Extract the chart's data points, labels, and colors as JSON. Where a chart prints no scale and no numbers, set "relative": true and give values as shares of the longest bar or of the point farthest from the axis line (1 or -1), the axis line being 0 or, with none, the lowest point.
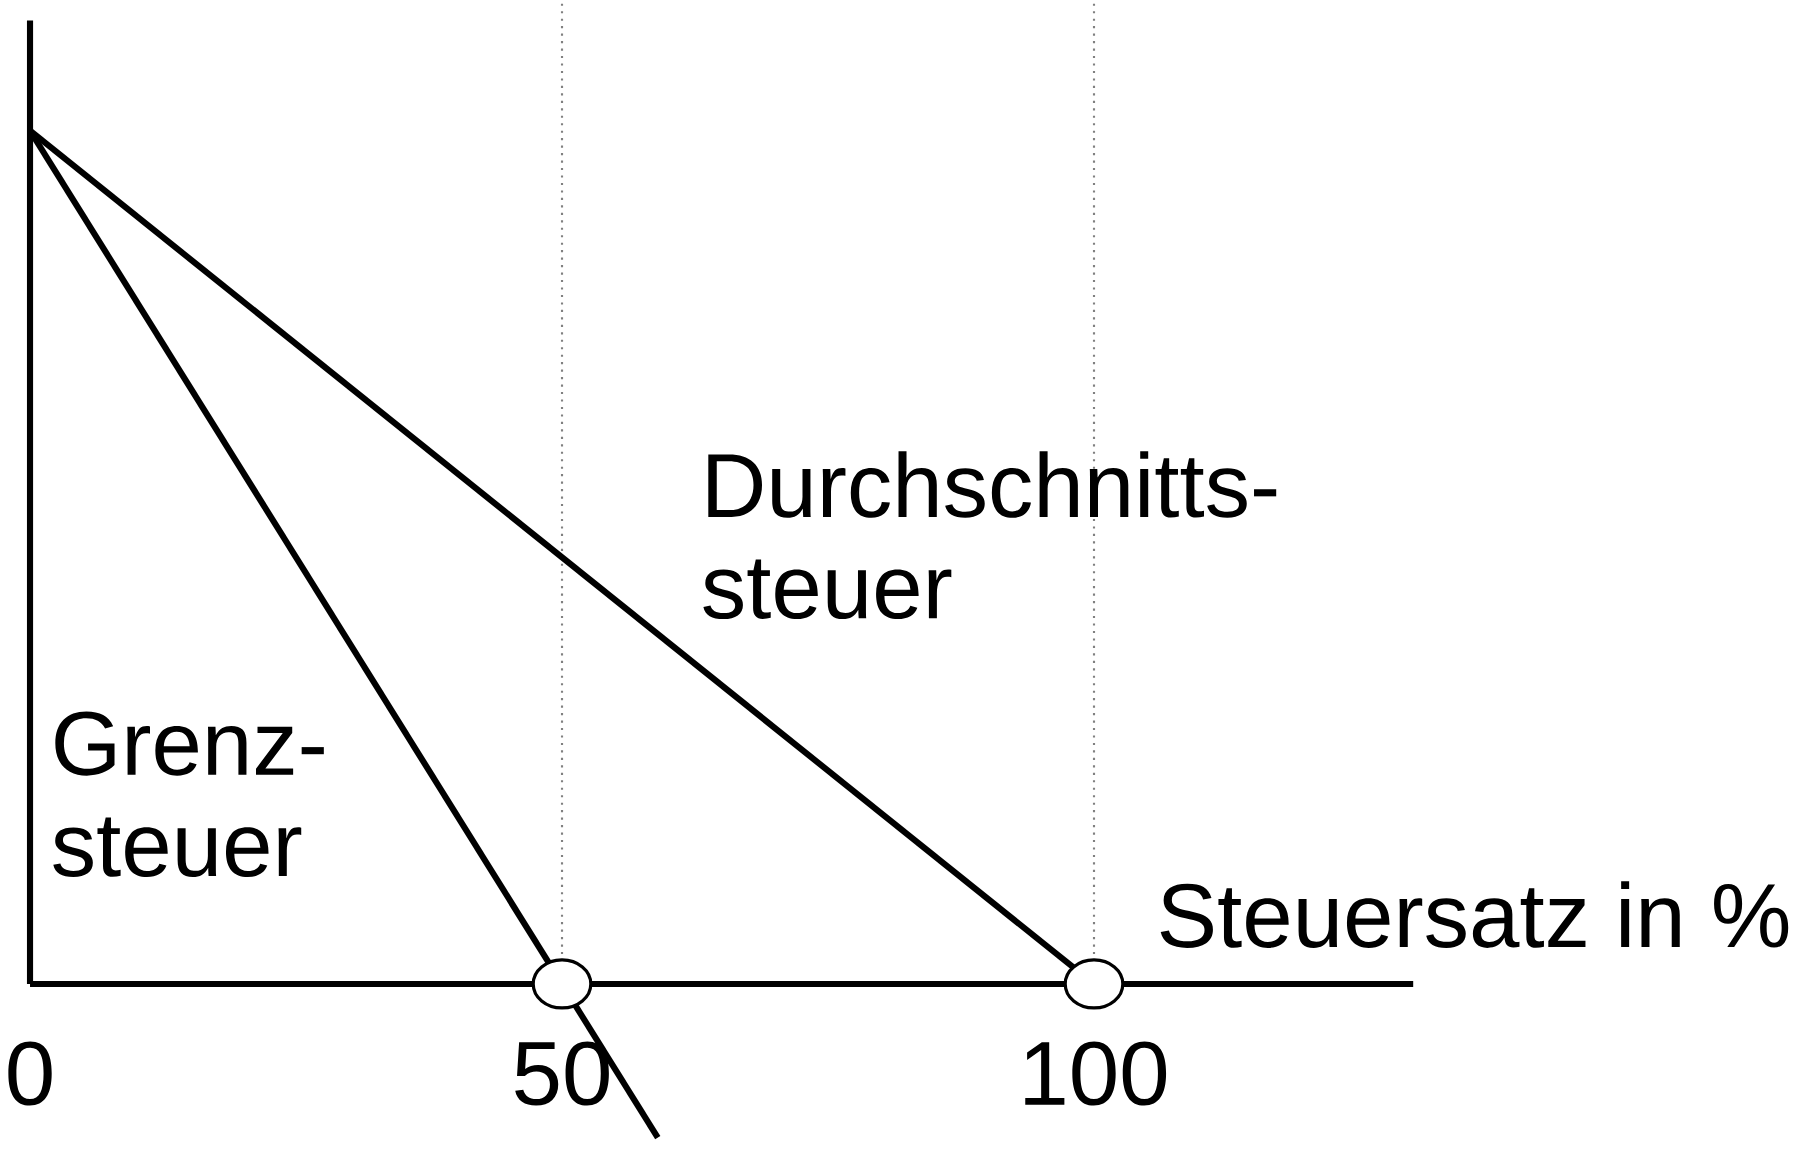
{
  "chart_data": {
    "type": "line",
    "relative": true,
    "xlabel": "Steuersatz in %",
    "xlim": [
      0,
      130
    ],
    "xticks": [
      0,
      50,
      100
    ],
    "series": [
      {
        "type": "line",
        "name": "Durchschnitts- steuer",
        "color": "#000000",
        "x": [
          0,
          100
        ],
        "values": [
          1,
          0
        ]
      },
      {
        "type": "line",
        "name": "Grenz- steuer",
        "color": "#000000",
        "x": [
          0,
          59
        ],
        "values": [
          1,
          -0.18
        ]
      },
      {
        "type": "scatter",
        "color": "#000000",
        "marker": "circle",
        "x": [
          50,
          100
        ],
        "values": [
          0,
          0
        ]
      }
    ],
    "ref_lines": [
      {
        "axis": "x",
        "value": 50,
        "color": "#808080",
        "line_style": "dotted"
      },
      {
        "axis": "x",
        "value": 100,
        "color": "#808080",
        "line_style": "dotted"
      }
    ]
  }
}
